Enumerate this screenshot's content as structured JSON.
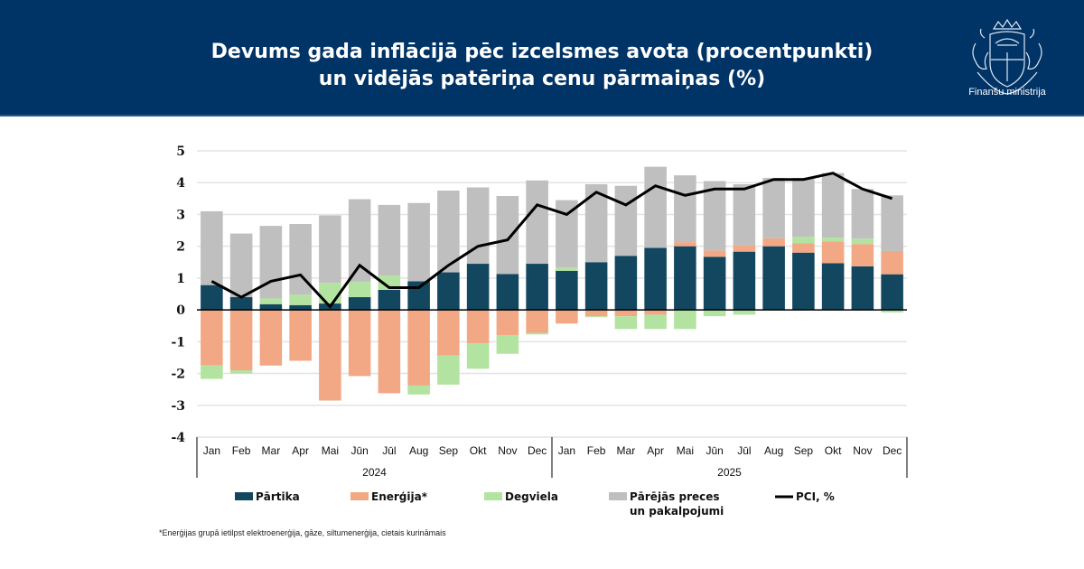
{
  "header": {
    "title_line1": "Devums gada inflācijā pēc izcelsmes avota (procentpunkti)",
    "title_line2": "un vidējās patēriņa cenu pārmaiņas (%)",
    "logo_icon": "coat-of-arms-icon",
    "logo_text": "Finanšu ministrija",
    "bg_color": "#003366"
  },
  "footnote": "*Enerģijas grupā ietilpst elektroenerģija, gāze, siltumenerģija, cietais kurināmais",
  "chart_data": {
    "type": "bar",
    "stacked": true,
    "title": "Devums gada inflācijā pēc izcelsmes avota (procentpunkti) un vidējās patēriņa cenu pārmaiņas (%)",
    "xlabel": "",
    "ylabel": "",
    "ylim": [
      -4,
      5
    ],
    "yticks": [
      "5",
      "4",
      "3",
      "2",
      "1",
      "0",
      "-1",
      "-2",
      "-3",
      "-4"
    ],
    "ytick_values": [
      5,
      4,
      3,
      2,
      1,
      0,
      -1,
      -2,
      -3,
      -4
    ],
    "grid": true,
    "categories": [
      "Jan",
      "Feb",
      "Mar",
      "Apr",
      "Mai",
      "Jūn",
      "Jūl",
      "Aug",
      "Sep",
      "Okt",
      "Nov",
      "Dec",
      "Jan",
      "Feb",
      "Mar",
      "Apr",
      "Mai",
      "Jūn",
      "Jūl",
      "Aug",
      "Sep",
      "Okt",
      "Nov",
      "Dec"
    ],
    "groups": [
      {
        "label": "2024",
        "count": 12
      },
      {
        "label": "2025",
        "count": 12
      }
    ],
    "legend_position": "bottom",
    "series": [
      {
        "name": "Pārtika",
        "kind": "bar",
        "color": "#12475f",
        "values": [
          0.78,
          0.4,
          0.18,
          0.15,
          0.2,
          0.4,
          0.63,
          0.9,
          1.18,
          1.45,
          1.13,
          1.45,
          1.23,
          1.5,
          1.7,
          1.95,
          2.0,
          1.67,
          1.83,
          2.0,
          1.8,
          1.47,
          1.37,
          1.12
        ]
      },
      {
        "name": "Enerģija*",
        "kind": "bar",
        "color": "#f2a884",
        "values": [
          -1.75,
          -1.9,
          -1.75,
          -1.6,
          -2.85,
          -2.08,
          -2.62,
          -2.38,
          -1.43,
          -1.05,
          -0.8,
          -0.72,
          -0.43,
          -0.2,
          -0.2,
          -0.15,
          0.13,
          0.2,
          0.2,
          0.25,
          0.3,
          0.68,
          0.7,
          0.73
        ]
      },
      {
        "name": "Degviela",
        "kind": "bar",
        "color": "#b3e3a0",
        "values": [
          -0.42,
          -0.1,
          0.18,
          0.33,
          0.65,
          0.48,
          0.45,
          -0.28,
          -0.92,
          -0.8,
          -0.58,
          -0.05,
          0.1,
          -0.03,
          -0.4,
          -0.45,
          -0.6,
          -0.2,
          -0.15,
          -0.02,
          0.2,
          0.12,
          0.17,
          -0.08
        ]
      },
      {
        "name": "Pārējās preces un pakalpojumi",
        "legend_lines": [
          "Pārējās preces",
          "un pakalpojumi"
        ],
        "kind": "bar",
        "color": "#bfbfbf",
        "values": [
          2.32,
          2.0,
          2.28,
          2.22,
          2.12,
          2.6,
          2.22,
          2.46,
          2.57,
          2.4,
          2.45,
          2.62,
          2.12,
          2.45,
          2.2,
          2.55,
          2.1,
          2.18,
          1.92,
          1.9,
          1.85,
          2.03,
          1.56,
          1.75
        ]
      },
      {
        "name": "PCI, %",
        "kind": "line",
        "color": "#000000",
        "values": [
          0.9,
          0.4,
          0.9,
          1.1,
          0.1,
          1.4,
          0.7,
          0.7,
          1.4,
          2.0,
          2.2,
          3.3,
          3.0,
          3.7,
          3.3,
          3.9,
          3.6,
          3.8,
          3.8,
          4.1,
          4.1,
          4.3,
          3.8,
          3.5
        ]
      }
    ]
  }
}
